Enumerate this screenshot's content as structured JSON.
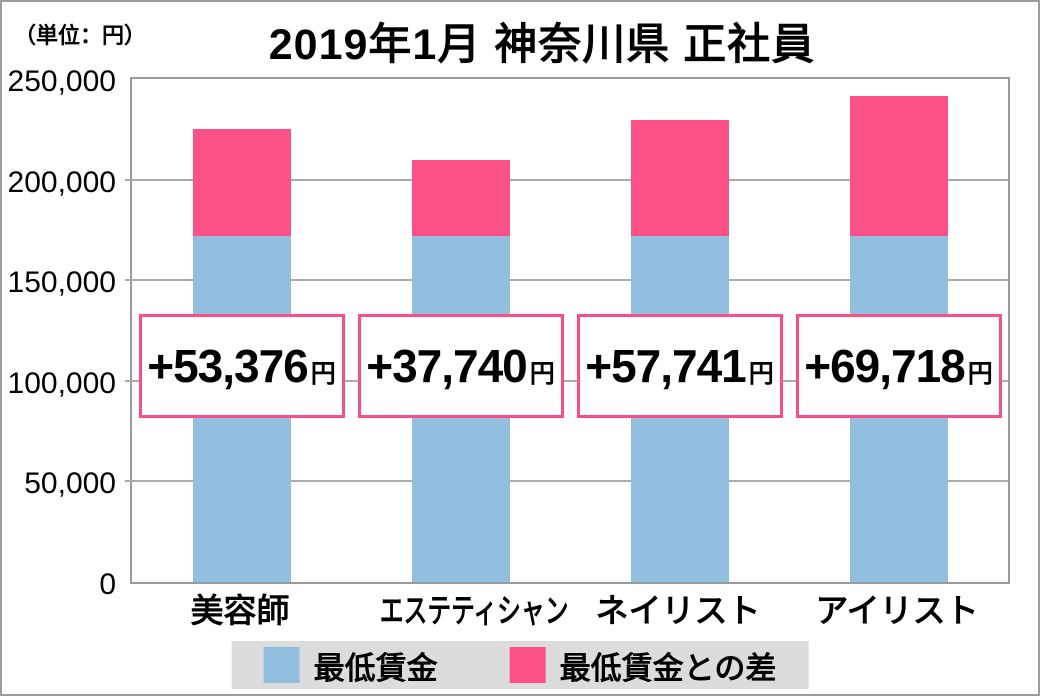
{
  "chart_data": {
    "type": "bar",
    "stacked": true,
    "title": "2019年1月 神奈川県 正社員",
    "unit_note": "（単位：円）",
    "categories": [
      "美容師",
      "エステティシャン",
      "ネイリスト",
      "アイリスト"
    ],
    "series": [
      {
        "name": "最低賃金",
        "color": "#92bfe0",
        "values": [
          172025,
          172025,
          172025,
          172025
        ]
      },
      {
        "name": "最低賃金との差",
        "color": "#fc5187",
        "values": [
          53376,
          37740,
          57741,
          69718
        ]
      }
    ],
    "totals": [
      225401,
      209765,
      229766,
      241743
    ],
    "bar_labels": [
      {
        "amount": "+53,376",
        "unit": "円"
      },
      {
        "amount": "+37,740",
        "unit": "円"
      },
      {
        "amount": "+57,741",
        "unit": "円"
      },
      {
        "amount": "+69,718",
        "unit": "円"
      }
    ],
    "ylim": [
      0,
      250000
    ],
    "ytick_interval": 50000,
    "ytick_labels": [
      "0",
      "50,000",
      "100,000",
      "150,000",
      "200,000",
      "250,000"
    ],
    "grid": true,
    "legend_position": "bottom",
    "legend_items": [
      {
        "label": "最低賃金",
        "color": "#92bfe0"
      },
      {
        "label": "最低賃金との差",
        "color": "#fc5187"
      }
    ],
    "style_colors": {
      "grid_line": "#ababab",
      "plot_border": "#9a9a9a",
      "label_box_border": "#fb4d87",
      "legend_background": "#dcdcdc"
    }
  }
}
